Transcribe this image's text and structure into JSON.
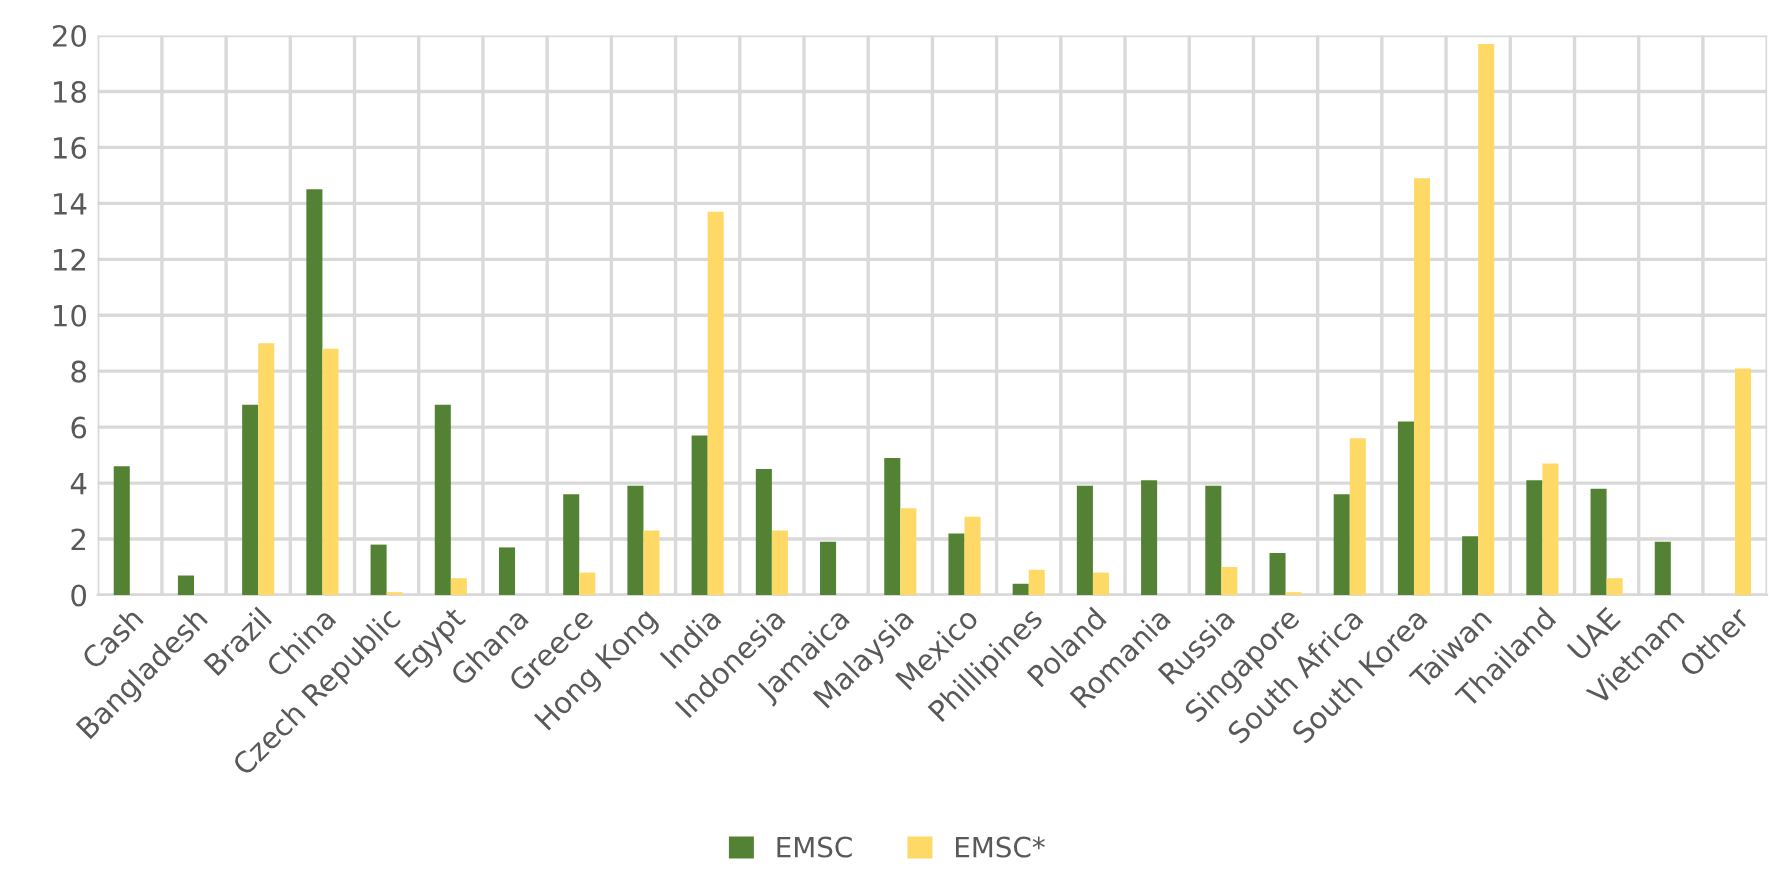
{
  "chart_data": {
    "type": "bar",
    "categories": [
      "Cash",
      "Bangladesh",
      "Brazil",
      "China",
      "Czech Republic",
      "Egypt",
      "Ghana",
      "Greece",
      "Hong Kong",
      "India",
      "Indonesia",
      "Jamaica",
      "Malaysia",
      "Mexico",
      "Phillipines",
      "Poland",
      "Romania",
      "Russia",
      "Singapore",
      "South Africa",
      "South Korea",
      "Taiwan",
      "Thailand",
      "UAE",
      "Vietnam",
      "Other"
    ],
    "series": [
      {
        "name": "EMSC",
        "color": "#548235",
        "values": [
          4.6,
          0.7,
          6.8,
          14.5,
          1.8,
          6.8,
          1.7,
          3.6,
          3.9,
          5.7,
          4.5,
          1.9,
          4.9,
          2.2,
          0.4,
          3.9,
          4.1,
          3.9,
          1.5,
          3.6,
          6.2,
          2.1,
          4.1,
          3.8,
          1.9,
          null
        ]
      },
      {
        "name": "EMSC*",
        "color": "#ffd966",
        "values": [
          null,
          null,
          9.0,
          8.8,
          0.1,
          0.6,
          null,
          0.8,
          2.3,
          13.7,
          2.3,
          null,
          3.1,
          2.8,
          0.9,
          0.8,
          null,
          1.0,
          0.1,
          5.6,
          14.9,
          19.7,
          4.7,
          0.6,
          null,
          8.1
        ]
      }
    ],
    "ylim": [
      0,
      20
    ],
    "yticks": [
      0,
      2,
      4,
      6,
      8,
      10,
      12,
      14,
      16,
      18,
      20
    ],
    "grid": true,
    "legend": "bottom"
  }
}
